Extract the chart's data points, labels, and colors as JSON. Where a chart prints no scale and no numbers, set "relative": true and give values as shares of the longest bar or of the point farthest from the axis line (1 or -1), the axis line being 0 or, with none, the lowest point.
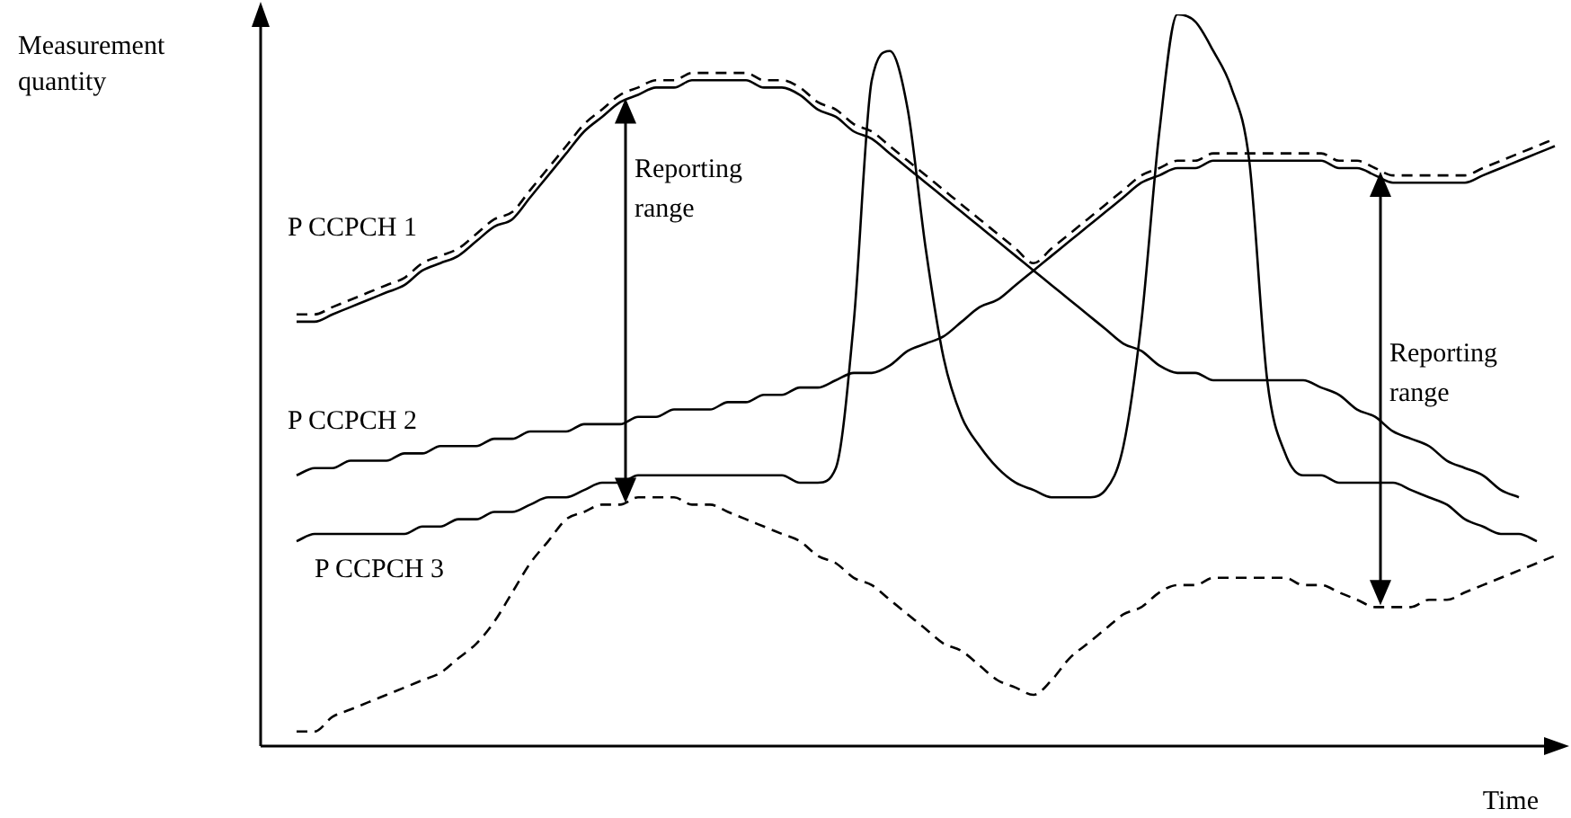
{
  "chart_data": {
    "type": "line",
    "xlabel": "Time",
    "ylabel": "Measurement quantity",
    "relative": true,
    "legend": false,
    "marker": "none",
    "annotations": [
      "Reporting range",
      "Reporting range"
    ],
    "categories": [
      null,
      null,
      null,
      null,
      null,
      null,
      null,
      null,
      null,
      null,
      null,
      null,
      null,
      null,
      null,
      null,
      null,
      null,
      null,
      null,
      null,
      null,
      null,
      null,
      null,
      null,
      null,
      null,
      null,
      null,
      null,
      null,
      null,
      null,
      null,
      null,
      null,
      null,
      null,
      null,
      null,
      null,
      null,
      null,
      null,
      null,
      null,
      null,
      null,
      null,
      null,
      null,
      null,
      null,
      null,
      null,
      null,
      null,
      null,
      null,
      null,
      null,
      null,
      null,
      null,
      null,
      null,
      null,
      null,
      null,
      null,
      null,
      null
    ],
    "series": [
      {
        "name": "P CCPCH 1",
        "color": "#000000",
        "line_style": "solid",
        "values": [
          null,
          null,
          0.58,
          0.58,
          0.59,
          0.6,
          0.61,
          0.62,
          0.63,
          0.65,
          0.66,
          0.67,
          0.69,
          0.71,
          0.72,
          0.75,
          0.78,
          0.81,
          0.84,
          0.86,
          0.88,
          0.89,
          0.9,
          0.9,
          0.91,
          0.91,
          0.91,
          0.91,
          0.9,
          0.9,
          0.89,
          0.87,
          0.86,
          0.84,
          0.83,
          0.81,
          0.79,
          0.77,
          0.75,
          0.73,
          0.71,
          0.69,
          0.67,
          0.65,
          0.63,
          0.61,
          0.59,
          0.57,
          0.55,
          0.54,
          0.52,
          0.51,
          0.51,
          0.5,
          0.5,
          0.5,
          0.5,
          0.5,
          0.5,
          0.49,
          0.48,
          0.46,
          0.45,
          0.43,
          0.42,
          0.41,
          0.39,
          0.38,
          0.37,
          0.35,
          0.34,
          null,
          null
        ]
      },
      {
        "color": "#000000",
        "line_style": "dashed",
        "values": [
          null,
          null,
          0.59,
          0.59,
          0.6,
          0.61,
          0.62,
          0.63,
          0.64,
          0.66,
          0.67,
          0.68,
          0.7,
          0.72,
          0.73,
          0.76,
          0.79,
          0.82,
          0.85,
          0.87,
          0.89,
          0.9,
          0.91,
          0.91,
          0.92,
          0.92,
          0.92,
          0.92,
          0.91,
          0.91,
          0.9,
          0.88,
          0.87,
          0.85,
          0.84,
          0.82,
          0.8,
          0.78,
          0.76,
          0.74,
          0.72,
          0.7,
          0.68,
          0.66,
          0.68,
          0.7,
          0.72,
          0.74,
          0.76,
          0.78,
          0.79,
          0.8,
          0.8,
          0.81,
          0.81,
          0.81,
          0.81,
          0.81,
          0.81,
          0.81,
          0.8,
          0.8,
          0.79,
          0.78,
          0.78,
          0.78,
          0.78,
          0.78,
          0.79,
          0.8,
          0.81,
          0.82,
          0.83
        ]
      },
      {
        "name": "P CCPCH 2",
        "color": "#000000",
        "line_style": "solid",
        "values": [
          null,
          null,
          0.37,
          0.38,
          0.38,
          0.39,
          0.39,
          0.39,
          0.4,
          0.4,
          0.41,
          0.41,
          0.41,
          0.42,
          0.42,
          0.43,
          0.43,
          0.43,
          0.44,
          0.44,
          0.44,
          0.45,
          0.45,
          0.46,
          0.46,
          0.46,
          0.47,
          0.47,
          0.48,
          0.48,
          0.49,
          0.49,
          0.5,
          0.51,
          0.51,
          0.52,
          0.54,
          0.55,
          0.56,
          0.58,
          0.6,
          0.61,
          0.63,
          0.65,
          0.67,
          0.69,
          0.71,
          0.73,
          0.75,
          0.77,
          0.78,
          0.79,
          0.79,
          0.8,
          0.8,
          0.8,
          0.8,
          0.8,
          0.8,
          0.8,
          0.79,
          0.79,
          0.78,
          0.77,
          0.77,
          0.77,
          0.77,
          0.77,
          0.78,
          0.79,
          0.8,
          0.81,
          0.82
        ]
      },
      {
        "name": "P CCPCH 3",
        "color": "#000000",
        "line_style": "solid",
        "values": [
          null,
          null,
          0.28,
          0.29,
          0.29,
          0.29,
          0.29,
          0.29,
          0.29,
          0.3,
          0.3,
          0.31,
          0.31,
          0.32,
          0.32,
          0.33,
          0.34,
          0.34,
          0.35,
          0.36,
          0.36,
          0.37,
          0.37,
          0.37,
          0.37,
          0.37,
          0.37,
          0.37,
          0.37,
          0.37,
          0.36,
          0.36,
          0.38,
          0.58,
          0.91,
          0.95,
          0.87,
          0.68,
          0.53,
          0.45,
          0.41,
          0.38,
          0.36,
          0.35,
          0.34,
          0.34,
          0.34,
          0.35,
          0.41,
          0.58,
          0.84,
          1.0,
          0.99,
          0.95,
          0.9,
          0.8,
          0.5,
          0.4,
          0.37,
          0.37,
          0.36,
          0.36,
          0.36,
          0.36,
          0.35,
          0.34,
          0.33,
          0.31,
          0.3,
          0.29,
          0.29,
          0.28,
          null
        ]
      },
      {
        "color": "#000000",
        "line_style": "dashed",
        "values": [
          null,
          null,
          0.02,
          0.02,
          0.04,
          0.05,
          0.06,
          0.07,
          0.08,
          0.09,
          0.1,
          0.12,
          0.14,
          0.17,
          0.21,
          0.25,
          0.28,
          0.31,
          0.32,
          0.33,
          0.33,
          0.34,
          0.34,
          0.34,
          0.33,
          0.33,
          0.32,
          0.31,
          0.3,
          0.29,
          0.28,
          0.26,
          0.25,
          0.23,
          0.22,
          0.2,
          0.18,
          0.16,
          0.14,
          0.13,
          0.11,
          0.09,
          0.08,
          0.07,
          0.09,
          0.12,
          0.14,
          0.16,
          0.18,
          0.19,
          0.21,
          0.22,
          0.22,
          0.23,
          0.23,
          0.23,
          0.23,
          0.23,
          0.22,
          0.22,
          0.21,
          0.2,
          0.19,
          0.19,
          0.19,
          0.2,
          0.2,
          0.21,
          0.22,
          0.23,
          0.24,
          0.25,
          0.26
        ]
      }
    ]
  }
}
